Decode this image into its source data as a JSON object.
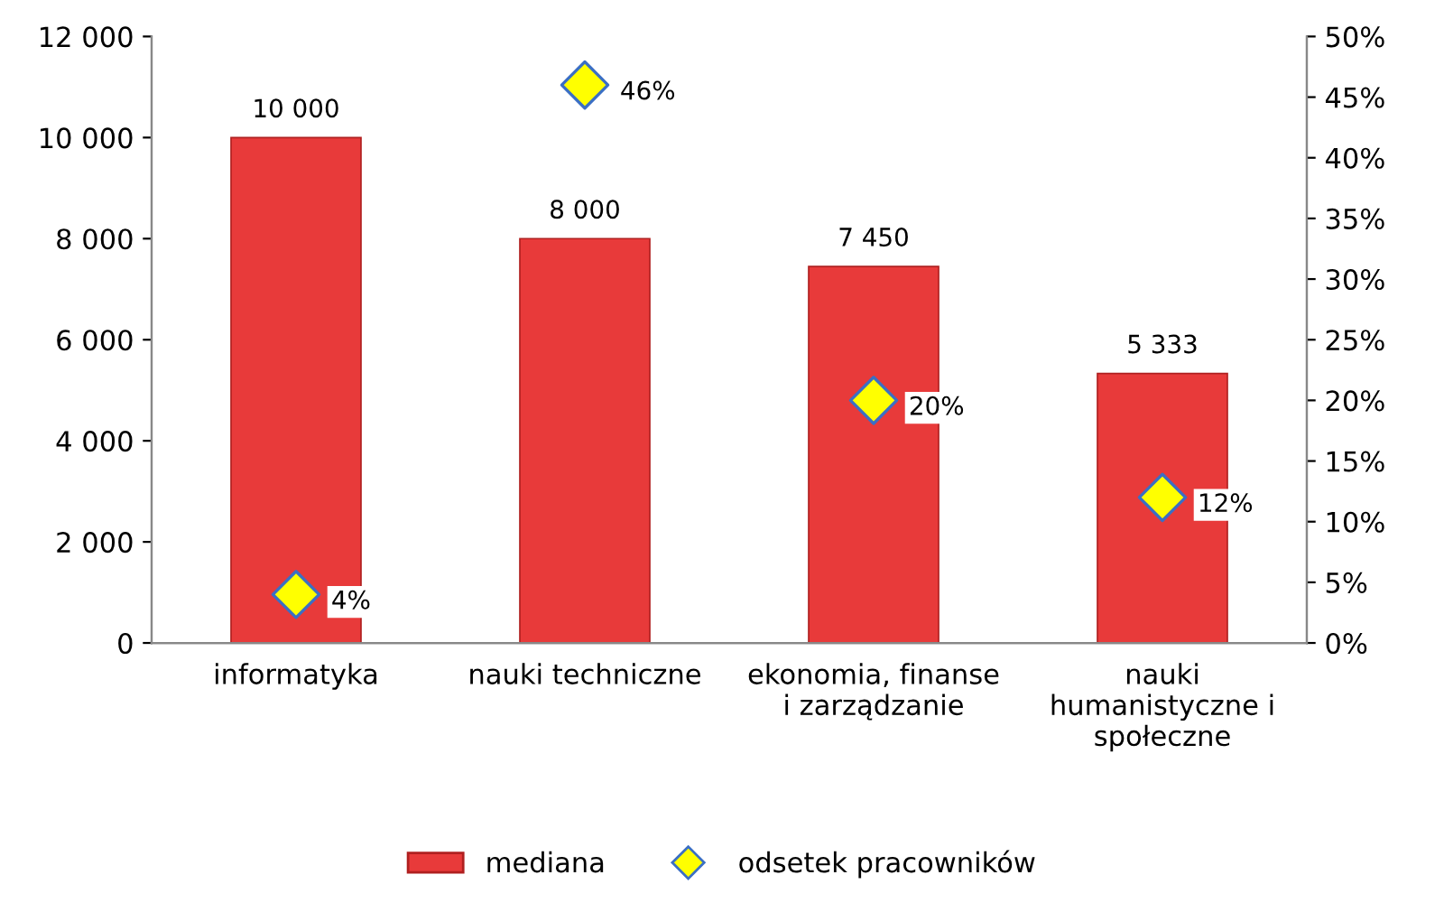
{
  "chart_data": {
    "type": "bar",
    "categories": [
      "informatyka",
      "nauki techniczne",
      "ekonomia, finanse\ni zarządzanie",
      "nauki\nhumanistyczne i\nspołeczne"
    ],
    "series": [
      {
        "name": "mediana",
        "color": "#e83a3a",
        "values": [
          10000,
          8000,
          7450,
          5333
        ],
        "value_labels": [
          "10 000",
          "8 000",
          "7 450",
          "5 333"
        ]
      },
      {
        "name": "odsetek pracowników",
        "type": "scatter",
        "axis": "y2",
        "marker": "diamond",
        "color": "#ffff00",
        "values": [
          4,
          46,
          20,
          12
        ],
        "value_labels": [
          "4%",
          "46%",
          "20%",
          "12%"
        ]
      }
    ],
    "ylim": [
      0,
      12000
    ],
    "yticks": [
      0,
      {
        "value": 2000,
        "label": "2 000"
      },
      {
        "value": 4000,
        "label": "4 000"
      },
      {
        "value": 6000,
        "label": "6 000"
      },
      {
        "value": 8000,
        "label": "8 000"
      },
      {
        "value": 10000,
        "label": "10 000"
      },
      {
        "value": 12000,
        "label": "12 000"
      }
    ],
    "y2lim": [
      0,
      50
    ],
    "y2ticks": [
      {
        "value": 0,
        "label": "0%"
      },
      {
        "value": 5,
        "label": "5%"
      },
      {
        "value": 10,
        "label": "10%"
      },
      {
        "value": 15,
        "label": "15%"
      },
      {
        "value": 20,
        "label": "20%"
      },
      {
        "value": 25,
        "label": "25%"
      },
      {
        "value": 30,
        "label": "30%"
      },
      {
        "value": 35,
        "label": "35%"
      },
      {
        "value": 40,
        "label": "40%"
      },
      {
        "value": 45,
        "label": "45%"
      },
      {
        "value": 50,
        "label": "50%"
      }
    ],
    "grid": false,
    "legend": "bottom"
  }
}
